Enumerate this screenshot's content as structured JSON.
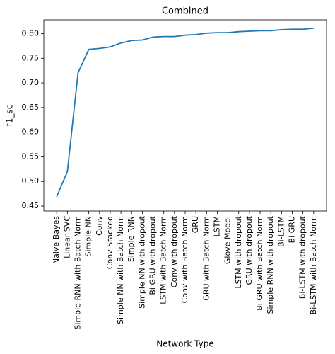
{
  "chart_data": {
    "type": "line",
    "title": "Combined",
    "x_label": "Network Type",
    "y_label": "f1_sc",
    "categories": [
      "Naive Bayes",
      "Linear SVC",
      "Simple RNN with Batch Norm",
      "Simple NN",
      "Conv",
      "Conv Stacked",
      "Simple NN with Batch Norm",
      "Simple RNN",
      "Simple NN with dropout",
      "Bi GRU with dropout",
      "LSTM with Batch Norm",
      "Conv with dropout",
      "Conv with Batch Norm",
      "GRU",
      "GRU with Batch Norm",
      "LSTM",
      "Glove Model",
      "LSTM with dropout",
      "GRU with dropout",
      "Bi GRU with Batch Norm",
      "Simple RNN with dropout",
      "Bi-LSTM",
      "Bi GRU",
      "Bi-LSTM with dropout",
      "Bi-LSTM with Batch Norm"
    ],
    "values": [
      0.469,
      0.52,
      0.721,
      0.768,
      0.77,
      0.773,
      0.781,
      0.786,
      0.787,
      0.793,
      0.794,
      0.794,
      0.797,
      0.798,
      0.801,
      0.802,
      0.802,
      0.804,
      0.805,
      0.806,
      0.806,
      0.808,
      0.809,
      0.809,
      0.811
    ],
    "color": "#1f77b4",
    "ylim": [
      0.44,
      0.828
    ],
    "yticks": [
      {
        "value": 0.45,
        "label": "0.45"
      },
      {
        "value": 0.5,
        "label": "0.50"
      },
      {
        "value": 0.55,
        "label": "0.55"
      },
      {
        "value": 0.6,
        "label": "0.60"
      },
      {
        "value": 0.65,
        "label": "0.65"
      },
      {
        "value": 0.7,
        "label": "0.70"
      },
      {
        "value": 0.75,
        "label": "0.75"
      },
      {
        "value": 0.8,
        "label": "0.80"
      }
    ],
    "grid": false
  }
}
